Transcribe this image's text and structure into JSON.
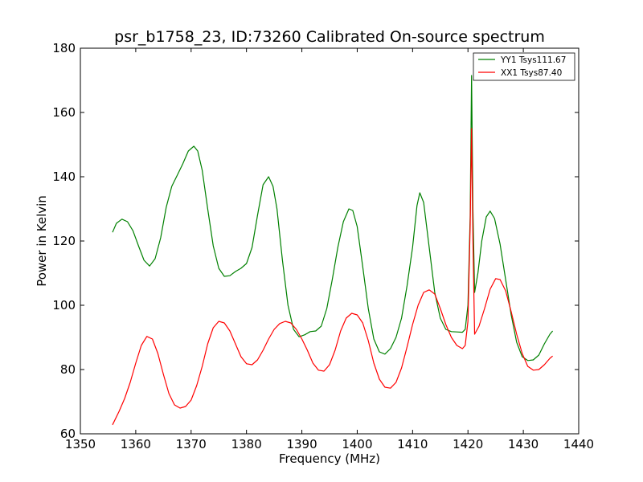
{
  "chart_data": {
    "type": "line",
    "title": "psr_b1758_23, ID:73260 Calibrated On-source spectrum",
    "xlabel": "Frequency (MHz)",
    "ylabel": "Power in Kelvin",
    "xlim": [
      1350,
      1440
    ],
    "ylim": [
      60,
      180
    ],
    "xticks": [
      1350,
      1360,
      1370,
      1380,
      1390,
      1400,
      1410,
      1420,
      1430,
      1440
    ],
    "yticks": [
      60,
      80,
      100,
      120,
      140,
      160,
      180
    ],
    "grid": false,
    "legend": "top-right",
    "series": [
      {
        "name": "YY1 Tsys111.67",
        "color": "#008000",
        "points": [
          [
            1355.8,
            122.7
          ],
          [
            1356.5,
            125.5
          ],
          [
            1357.5,
            126.8
          ],
          [
            1358.5,
            126.0
          ],
          [
            1359.5,
            123.2
          ],
          [
            1360.5,
            118.5
          ],
          [
            1361.5,
            114.0
          ],
          [
            1362.5,
            112.2
          ],
          [
            1363.5,
            114.5
          ],
          [
            1364.5,
            121.0
          ],
          [
            1365.5,
            130.5
          ],
          [
            1366.5,
            137.0
          ],
          [
            1367.5,
            140.5
          ],
          [
            1368.5,
            144.0
          ],
          [
            1369.5,
            148.0
          ],
          [
            1370.5,
            149.5
          ],
          [
            1371.2,
            148.0
          ],
          [
            1372.0,
            142.0
          ],
          [
            1373.0,
            130.0
          ],
          [
            1374.0,
            118.5
          ],
          [
            1375.0,
            111.5
          ],
          [
            1376.0,
            109.0
          ],
          [
            1377.0,
            109.2
          ],
          [
            1378.0,
            110.5
          ],
          [
            1379.0,
            111.5
          ],
          [
            1380.0,
            113.0
          ],
          [
            1381.0,
            118.0
          ],
          [
            1382.0,
            128.0
          ],
          [
            1383.0,
            137.5
          ],
          [
            1384.0,
            140.0
          ],
          [
            1384.8,
            137.0
          ],
          [
            1385.5,
            130.0
          ],
          [
            1386.5,
            114.0
          ],
          [
            1387.5,
            100.0
          ],
          [
            1388.5,
            92.5
          ],
          [
            1389.5,
            90.2
          ],
          [
            1390.5,
            90.8
          ],
          [
            1391.5,
            91.8
          ],
          [
            1392.5,
            92.0
          ],
          [
            1393.5,
            93.5
          ],
          [
            1394.5,
            99.0
          ],
          [
            1395.5,
            108.0
          ],
          [
            1396.5,
            118.0
          ],
          [
            1397.5,
            126.0
          ],
          [
            1398.5,
            130.0
          ],
          [
            1399.2,
            129.5
          ],
          [
            1400.0,
            124.5
          ],
          [
            1401.0,
            112.0
          ],
          [
            1402.0,
            99.0
          ],
          [
            1403.0,
            89.5
          ],
          [
            1404.0,
            85.5
          ],
          [
            1405.0,
            84.8
          ],
          [
            1406.0,
            86.5
          ],
          [
            1407.0,
            90.0
          ],
          [
            1408.0,
            96.0
          ],
          [
            1409.0,
            106.0
          ],
          [
            1410.0,
            118.0
          ],
          [
            1410.8,
            131.0
          ],
          [
            1411.3,
            135.0
          ],
          [
            1412.0,
            132.0
          ],
          [
            1413.0,
            118.0
          ],
          [
            1414.0,
            104.0
          ],
          [
            1415.0,
            96.0
          ],
          [
            1416.0,
            92.5
          ],
          [
            1417.0,
            91.8
          ],
          [
            1418.0,
            91.7
          ],
          [
            1419.0,
            91.6
          ],
          [
            1419.5,
            92.5
          ],
          [
            1420.0,
            100.0
          ],
          [
            1420.4,
            128.0
          ],
          [
            1420.65,
            171.5
          ],
          [
            1420.9,
            130.0
          ],
          [
            1421.2,
            104.0
          ],
          [
            1421.8,
            110.0
          ],
          [
            1422.5,
            120.0
          ],
          [
            1423.3,
            127.5
          ],
          [
            1424.0,
            129.3
          ],
          [
            1424.8,
            127.0
          ],
          [
            1425.8,
            119.0
          ],
          [
            1426.8,
            108.0
          ],
          [
            1427.8,
            97.0
          ],
          [
            1428.8,
            88.5
          ],
          [
            1429.8,
            84.0
          ],
          [
            1430.8,
            82.8
          ],
          [
            1431.8,
            83.0
          ],
          [
            1432.8,
            84.5
          ],
          [
            1433.8,
            88.0
          ],
          [
            1434.8,
            91.0
          ],
          [
            1435.3,
            92.0
          ]
        ]
      },
      {
        "name": "XX1 Tsys87.40",
        "color": "#ff0000",
        "points": [
          [
            1355.8,
            62.8
          ],
          [
            1357.0,
            67.0
          ],
          [
            1358.0,
            71.0
          ],
          [
            1359.0,
            76.0
          ],
          [
            1360.0,
            82.0
          ],
          [
            1361.0,
            87.5
          ],
          [
            1362.0,
            90.3
          ],
          [
            1363.0,
            89.5
          ],
          [
            1364.0,
            85.0
          ],
          [
            1365.0,
            78.5
          ],
          [
            1366.0,
            72.5
          ],
          [
            1367.0,
            69.0
          ],
          [
            1368.0,
            68.0
          ],
          [
            1369.0,
            68.5
          ],
          [
            1370.0,
            70.5
          ],
          [
            1371.0,
            75.0
          ],
          [
            1372.0,
            81.0
          ],
          [
            1373.0,
            88.0
          ],
          [
            1374.0,
            93.0
          ],
          [
            1375.0,
            95.0
          ],
          [
            1376.0,
            94.5
          ],
          [
            1377.0,
            92.0
          ],
          [
            1378.0,
            88.0
          ],
          [
            1379.0,
            84.0
          ],
          [
            1380.0,
            81.8
          ],
          [
            1381.0,
            81.5
          ],
          [
            1382.0,
            83.0
          ],
          [
            1383.0,
            86.0
          ],
          [
            1384.0,
            89.5
          ],
          [
            1385.0,
            92.5
          ],
          [
            1386.0,
            94.3
          ],
          [
            1387.0,
            95.0
          ],
          [
            1388.0,
            94.5
          ],
          [
            1389.0,
            92.5
          ],
          [
            1390.0,
            89.5
          ],
          [
            1391.0,
            86.0
          ],
          [
            1392.0,
            82.0
          ],
          [
            1393.0,
            79.8
          ],
          [
            1394.0,
            79.5
          ],
          [
            1395.0,
            81.5
          ],
          [
            1396.0,
            86.0
          ],
          [
            1397.0,
            92.0
          ],
          [
            1398.0,
            96.0
          ],
          [
            1399.0,
            97.5
          ],
          [
            1400.0,
            97.0
          ],
          [
            1401.0,
            94.5
          ],
          [
            1402.0,
            89.0
          ],
          [
            1403.0,
            82.0
          ],
          [
            1404.0,
            77.0
          ],
          [
            1405.0,
            74.5
          ],
          [
            1406.0,
            74.2
          ],
          [
            1407.0,
            76.0
          ],
          [
            1408.0,
            80.5
          ],
          [
            1409.0,
            87.0
          ],
          [
            1410.0,
            94.0
          ],
          [
            1411.0,
            100.0
          ],
          [
            1412.0,
            104.0
          ],
          [
            1413.0,
            104.8
          ],
          [
            1414.0,
            103.5
          ],
          [
            1415.0,
            99.0
          ],
          [
            1416.0,
            94.0
          ],
          [
            1417.0,
            90.0
          ],
          [
            1418.0,
            87.5
          ],
          [
            1419.0,
            86.5
          ],
          [
            1419.5,
            87.5
          ],
          [
            1420.0,
            95.0
          ],
          [
            1420.4,
            125.0
          ],
          [
            1420.65,
            155.0
          ],
          [
            1420.9,
            120.0
          ],
          [
            1421.2,
            91.0
          ],
          [
            1422.0,
            93.5
          ],
          [
            1423.0,
            99.0
          ],
          [
            1424.0,
            105.0
          ],
          [
            1425.0,
            108.3
          ],
          [
            1425.8,
            108.0
          ],
          [
            1426.8,
            104.5
          ],
          [
            1427.8,
            98.0
          ],
          [
            1428.8,
            91.0
          ],
          [
            1429.8,
            85.0
          ],
          [
            1430.8,
            81.0
          ],
          [
            1431.8,
            79.8
          ],
          [
            1432.8,
            80.0
          ],
          [
            1433.8,
            81.5
          ],
          [
            1434.8,
            83.5
          ],
          [
            1435.3,
            84.2
          ]
        ]
      }
    ]
  }
}
